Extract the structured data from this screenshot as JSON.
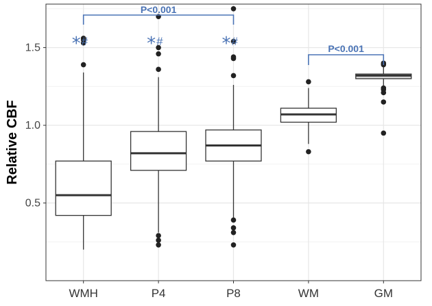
{
  "chart_data": {
    "type": "box",
    "ylabel": "Relative CBF",
    "xlabel": "",
    "ylim": [
      0.0,
      1.78
    ],
    "grid": true,
    "y_ticks": [
      "0.5",
      "1.0",
      "1.5"
    ],
    "y_tick_values": [
      0.5,
      1.0,
      1.5
    ],
    "categories": [
      "WMH",
      "P4",
      "P8",
      "WM",
      "GM"
    ],
    "boxes": [
      {
        "category": "WMH",
        "whisker_low": 0.2,
        "q1": 0.42,
        "median": 0.55,
        "q3": 0.77,
        "whisker_high": 1.34,
        "outliers": [
          1.39,
          1.53,
          1.55,
          1.56
        ]
      },
      {
        "category": "P4",
        "whisker_low": 0.31,
        "q1": 0.71,
        "median": 0.82,
        "q3": 0.96,
        "whisker_high": 1.31,
        "outliers": [
          0.23,
          0.26,
          0.29,
          1.36,
          1.46,
          1.5,
          1.7
        ]
      },
      {
        "category": "P8",
        "whisker_low": 0.4,
        "q1": 0.77,
        "median": 0.87,
        "q3": 0.97,
        "whisker_high": 1.26,
        "outliers": [
          0.23,
          0.31,
          0.34,
          0.39,
          1.32,
          1.43,
          1.44,
          1.54,
          1.75
        ]
      },
      {
        "category": "WM",
        "whisker_low": 0.88,
        "q1": 1.02,
        "median": 1.07,
        "q3": 1.11,
        "whisker_high": 1.24,
        "outliers": [
          0.83,
          1.28
        ]
      },
      {
        "category": "GM",
        "whisker_low": 1.25,
        "q1": 1.3,
        "median": 1.32,
        "q3": 1.33,
        "whisker_high": 1.38,
        "outliers": [
          0.95,
          1.15,
          1.21,
          1.23,
          1.24,
          1.39,
          1.4
        ]
      }
    ],
    "annotations": {
      "bracket_left": {
        "from": "WMH",
        "to": "P8",
        "label": "P<0.001"
      },
      "bracket_right": {
        "from": "WM",
        "to": "GM",
        "label": "P<0.001"
      },
      "markers": [
        {
          "category": "WMH",
          "star": "*",
          "hash": "#"
        },
        {
          "category": "P4",
          "star": "*",
          "hash": "#"
        },
        {
          "category": "P8",
          "star": "*",
          "hash": "#"
        }
      ]
    },
    "colors": {
      "annotation": "#4a73b5",
      "box_fill": "#ffffff",
      "box_stroke": "#333333",
      "median": "#333333",
      "outlier": "#222222",
      "grid_major": "#e6e6e6",
      "grid_minor": "#f2f2f2",
      "gm_fill": "#d9d9d9"
    }
  }
}
